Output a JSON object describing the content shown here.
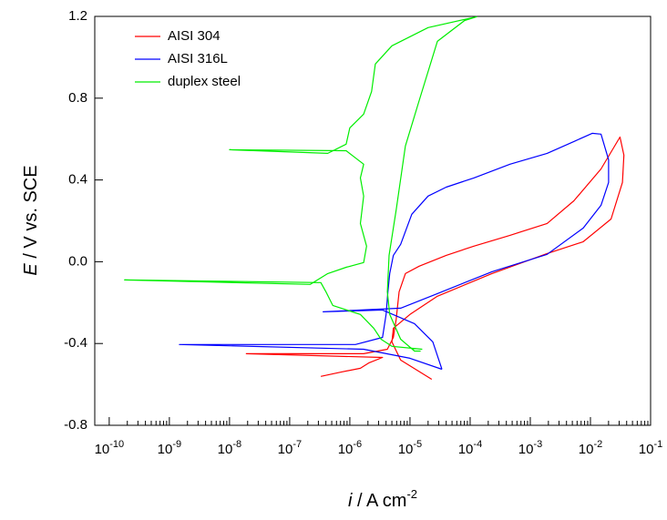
{
  "chart_data": {
    "type": "line",
    "x_label": {
      "symbol": "i",
      "text": " / A cm",
      "exponent": "-2"
    },
    "y_label": {
      "symbol": "E",
      "text": " / V vs. SCE"
    },
    "xscale": "log",
    "legend": "upper left",
    "minor_ticks": true,
    "xlim": [
      5.75e-11,
      0.1
    ],
    "ylim": [
      -0.8,
      1.2
    ],
    "xticks": [
      {
        "value": 1e-10,
        "label": "10",
        "exponent": "-10"
      },
      {
        "value": 1e-09,
        "label": "10",
        "exponent": "-9"
      },
      {
        "value": 1e-08,
        "label": "10",
        "exponent": "-8"
      },
      {
        "value": 1e-07,
        "label": "10",
        "exponent": "-7"
      },
      {
        "value": 1e-06,
        "label": "10",
        "exponent": "-6"
      },
      {
        "value": 1e-05,
        "label": "10",
        "exponent": "-5"
      },
      {
        "value": 0.0001,
        "label": "10",
        "exponent": "-4"
      },
      {
        "value": 0.001,
        "label": "10",
        "exponent": "-3"
      },
      {
        "value": 0.01,
        "label": "10",
        "exponent": "-2"
      },
      {
        "value": 0.1,
        "label": "10",
        "exponent": "-1"
      }
    ],
    "yticks": [
      -0.8,
      -0.4,
      {
        "value": 0,
        "label": "0.0"
      },
      0.4,
      0.8,
      1.2
    ],
    "series": [
      {
        "name": "AISI 304",
        "color": "#ff0000",
        "x": [
          3.3e-07,
          7.3e-07,
          1.5e-06,
          2.1e-06,
          3.5e-06,
          1.9e-08,
          1.7e-06,
          4.2e-06,
          5.3e-06,
          5.9e-06,
          6.6e-06,
          8.4e-06,
          1.42e-05,
          4e-05,
          0.000115,
          0.00046,
          0.0019,
          0.0053,
          0.015,
          0.031,
          0.036,
          0.034,
          0.022,
          0.0076,
          0.0019,
          0.00023,
          2.85e-05,
          1e-05,
          5.3e-06,
          5e-06,
          7e-06,
          2.3e-05
        ],
        "values": [
          -0.561,
          -0.539,
          -0.521,
          -0.494,
          -0.468,
          -0.45,
          -0.45,
          -0.428,
          -0.37,
          -0.281,
          -0.147,
          -0.058,
          -0.022,
          0.031,
          0.076,
          0.129,
          0.187,
          0.298,
          0.454,
          0.61,
          0.521,
          0.388,
          0.209,
          0.098,
          0.04,
          -0.058,
          -0.169,
          -0.258,
          -0.325,
          -0.392,
          -0.481,
          -0.575
        ]
      },
      {
        "name": "AISI 316L",
        "color": "#0000ff",
        "x": [
          3.4e-05,
          1e-05,
          1.7e-06,
          1.47e-09,
          1.24e-06,
          3.5e-06,
          4e-06,
          4.3e-06,
          4.6e-06,
          5.3e-06,
          7e-06,
          1.07e-05,
          2e-05,
          4e-05,
          0.000115,
          0.00046,
          0.0019,
          0.0053,
          0.0107,
          0.015,
          0.02,
          0.02,
          0.015,
          0.0076,
          0.0019,
          0.00023,
          2.85e-05,
          7e-06,
          3.6e-07,
          3.5e-06,
          1.19e-05,
          2.4e-05,
          3.4e-05
        ],
        "values": [
          -0.526,
          -0.472,
          -0.428,
          -0.405,
          -0.405,
          -0.37,
          -0.258,
          -0.147,
          -0.058,
          0.031,
          0.085,
          0.232,
          0.321,
          0.365,
          0.41,
          0.477,
          0.53,
          0.588,
          0.628,
          0.624,
          0.499,
          0.388,
          0.276,
          0.165,
          0.036,
          -0.049,
          -0.156,
          -0.227,
          -0.245,
          -0.236,
          -0.303,
          -0.392,
          -0.526
        ]
      },
      {
        "name": "duplex steel",
        "color": "#00ee00",
        "x": [
          1.6e-05,
          5e-06,
          3.3e-06,
          2.5e-06,
          1.5e-06,
          5.2e-07,
          4e-07,
          3.3e-07,
          1.8e-10,
          2.2e-07,
          4.3e-07,
          8.7e-07,
          1.7e-06,
          1.9e-06,
          1.5e-06,
          1.7e-06,
          1.5e-06,
          1.7e-06,
          8.7e-07,
          1e-08,
          4.3e-07,
          8.7e-07,
          1e-06,
          1.7e-06,
          2.3e-06,
          2.65e-06,
          5e-06,
          2e-05,
          0.000128,
          8.1e-05,
          2.85e-05,
          1.42e-05,
          8.4e-06,
          5.9e-06,
          4.5e-06,
          4.2e-06,
          4.6e-06,
          7e-06,
          1.19e-05,
          1.5e-05
        ],
        "values": [
          -0.428,
          -0.414,
          -0.379,
          -0.325,
          -0.258,
          -0.214,
          -0.147,
          -0.102,
          -0.089,
          -0.111,
          -0.058,
          -0.027,
          -0.004,
          0.076,
          0.187,
          0.321,
          0.41,
          0.477,
          0.543,
          0.548,
          0.53,
          0.575,
          0.655,
          0.722,
          0.833,
          0.967,
          1.056,
          1.145,
          1.198,
          1.18,
          1.078,
          0.788,
          0.566,
          0.254,
          0.031,
          -0.147,
          -0.258,
          -0.379,
          -0.437,
          -0.437
        ]
      }
    ]
  }
}
